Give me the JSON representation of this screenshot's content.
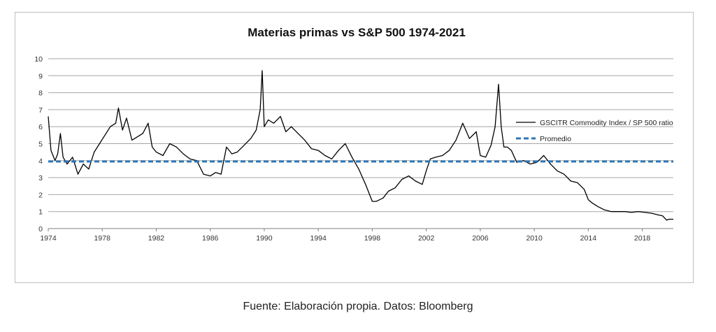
{
  "source_note": "Fuente: Elaboración propia. Datos: Bloomberg",
  "chart_data": {
    "type": "line",
    "title": "Materias primas vs S&P 500  1974-2021",
    "xlabel": "",
    "ylabel": "",
    "xlim": [
      1974,
      2020.3
    ],
    "ylim": [
      0,
      10
    ],
    "y_ticks": [
      "0",
      "1",
      "2",
      "3",
      "4",
      "5",
      "6",
      "7",
      "8",
      "9",
      "10"
    ],
    "x_ticks": [
      "1974",
      "1978",
      "1982",
      "1986",
      "1990",
      "1994",
      "1998",
      "2002",
      "2006",
      "2010",
      "2014",
      "2018"
    ],
    "grid": "horizontal",
    "legend_position": "right",
    "colors": {
      "ratio": "#000000",
      "average": "#2e75b6",
      "grid": "#a6a6a6"
    },
    "series": [
      {
        "name": "GSCITR Commodity Index / SP 500 ratio",
        "style": "solid",
        "x": [
          1974.0,
          1974.2,
          1974.5,
          1974.7,
          1974.9,
          1975.1,
          1975.4,
          1975.8,
          1976.2,
          1976.6,
          1977.0,
          1977.4,
          1977.8,
          1978.2,
          1978.6,
          1979.0,
          1979.2,
          1979.5,
          1979.8,
          1980.2,
          1980.6,
          1981.0,
          1981.4,
          1981.7,
          1982.0,
          1982.5,
          1983.0,
          1983.5,
          1984.0,
          1984.5,
          1985.0,
          1985.5,
          1986.0,
          1986.4,
          1986.8,
          1987.2,
          1987.6,
          1988.0,
          1988.5,
          1989.0,
          1989.4,
          1989.7,
          1989.85,
          1990.0,
          1990.3,
          1990.7,
          1991.2,
          1991.6,
          1992.0,
          1992.5,
          1993.0,
          1993.5,
          1994.0,
          1994.5,
          1995.0,
          1995.5,
          1996.0,
          1996.5,
          1997.0,
          1997.5,
          1998.0,
          1998.3,
          1998.8,
          1999.2,
          1999.7,
          2000.2,
          2000.7,
          2001.2,
          2001.7,
          2002.0,
          2002.3,
          2002.7,
          2003.2,
          2003.7,
          2004.2,
          2004.7,
          2005.2,
          2005.7,
          2006.0,
          2006.4,
          2006.8,
          2007.1,
          2007.35,
          2007.55,
          2007.75,
          2008.0,
          2008.3,
          2008.7,
          2009.2,
          2009.7,
          2010.2,
          2010.7,
          2011.2,
          2011.7,
          2012.2,
          2012.7,
          2013.2,
          2013.7,
          2014.0,
          2014.3,
          2014.7,
          2015.2,
          2015.7,
          2016.2,
          2016.7,
          2017.2,
          2017.7,
          2018.2,
          2018.7,
          2019.2,
          2019.5,
          2019.8,
          2020.0,
          2020.3
        ],
        "values": [
          6.6,
          4.6,
          4.0,
          4.4,
          5.6,
          4.2,
          3.8,
          4.2,
          3.2,
          3.8,
          3.5,
          4.5,
          5.0,
          5.5,
          6.0,
          6.2,
          7.1,
          5.8,
          6.5,
          5.2,
          5.4,
          5.6,
          6.2,
          4.8,
          4.5,
          4.3,
          5.0,
          4.8,
          4.4,
          4.1,
          4.0,
          3.2,
          3.1,
          3.3,
          3.2,
          4.8,
          4.4,
          4.5,
          4.9,
          5.3,
          5.8,
          7.0,
          9.3,
          6.0,
          6.4,
          6.2,
          6.6,
          5.7,
          6.0,
          5.6,
          5.2,
          4.7,
          4.6,
          4.3,
          4.1,
          4.6,
          5.0,
          4.2,
          3.5,
          2.6,
          1.6,
          1.6,
          1.8,
          2.2,
          2.4,
          2.9,
          3.1,
          2.8,
          2.6,
          3.4,
          4.1,
          4.2,
          4.3,
          4.6,
          5.2,
          6.2,
          5.3,
          5.7,
          4.3,
          4.2,
          4.9,
          6.0,
          8.5,
          6.0,
          4.8,
          4.8,
          4.6,
          3.9,
          4.0,
          3.8,
          3.9,
          4.3,
          3.8,
          3.4,
          3.2,
          2.8,
          2.7,
          2.3,
          1.7,
          1.5,
          1.3,
          1.1,
          1.0,
          1.0,
          1.0,
          0.95,
          1.0,
          0.95,
          0.9,
          0.8,
          0.75,
          0.5,
          0.55,
          0.55
        ]
      },
      {
        "name": "Promedio",
        "style": "dashed",
        "x": [
          1974.0,
          2020.3
        ],
        "values": [
          3.95,
          3.95
        ]
      }
    ]
  }
}
